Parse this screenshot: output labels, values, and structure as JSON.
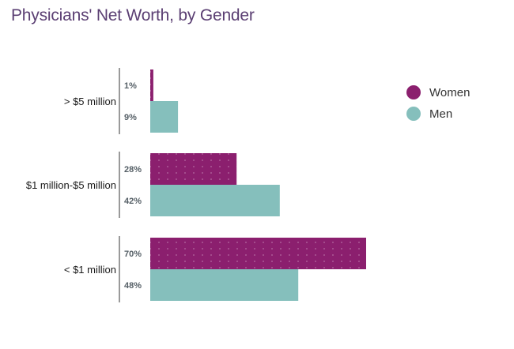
{
  "chart_data": {
    "type": "bar",
    "orientation": "horizontal",
    "title": "Physicians' Net Worth, by Gender",
    "categories": [
      "> $5 million",
      "$1 million-$5 million",
      "< $1 million"
    ],
    "series": [
      {
        "name": "Women",
        "color": "#8b1f6e",
        "values": [
          1,
          28,
          70
        ],
        "labels": [
          "1%",
          "28%",
          "70%"
        ]
      },
      {
        "name": "Men",
        "color": "#85bfbc",
        "values": [
          9,
          42,
          48
        ],
        "labels": [
          "9%",
          "42%",
          "48%"
        ]
      }
    ],
    "xlim": [
      0,
      70
    ],
    "unit": "%",
    "legend_position": "top-right",
    "grid": false
  }
}
